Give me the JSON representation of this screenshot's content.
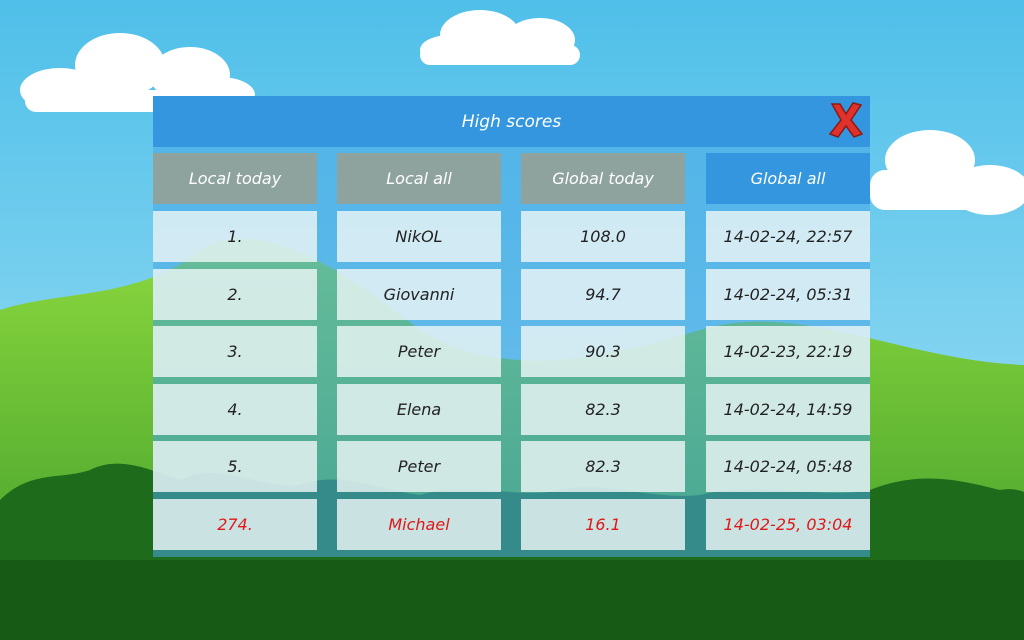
{
  "title": "High scores",
  "tabs": [
    "Local today",
    "Local all",
    "Global today",
    "Global all"
  ],
  "rows": [
    [
      "1.",
      "NikOL",
      "108.0",
      "14-02-24, 22:57"
    ],
    [
      "2.",
      "Giovanni",
      "94.7",
      "14-02-24, 05:31"
    ],
    [
      "3.",
      "Peter",
      "90.3",
      "14-02-23, 22:19"
    ],
    [
      "4.",
      "Elena",
      "82.3",
      "14-02-24, 14:59"
    ],
    [
      "5.",
      "Peter",
      "82.3",
      "14-02-24, 05:48"
    ],
    [
      "274.",
      "Michael",
      "16.1",
      "14-02-25, 03:04"
    ]
  ]
}
